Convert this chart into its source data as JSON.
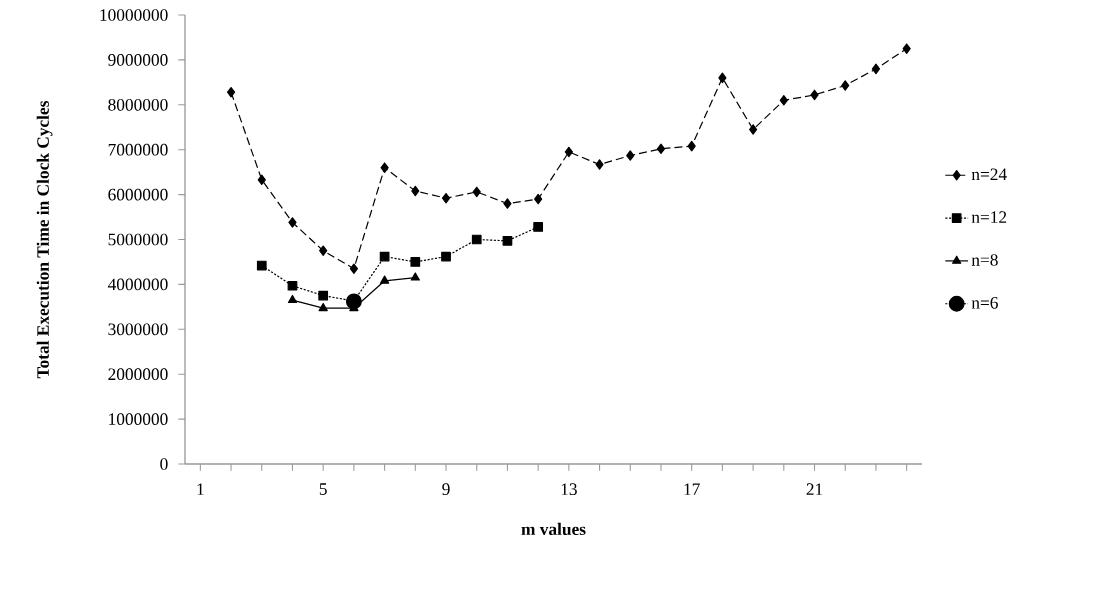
{
  "chart_data": {
    "type": "line",
    "xlabel": "m values",
    "ylabel": "Total Execution Time in Clock Cycles",
    "x": [
      2,
      3,
      4,
      5,
      6,
      7,
      8,
      9,
      10,
      11,
      12,
      13,
      14,
      15,
      16,
      17,
      18,
      19,
      20,
      21,
      22,
      23,
      24
    ],
    "series": [
      {
        "name": "n=24",
        "color": "#000000",
        "marker": "diamond",
        "line_style": "dashed",
        "values": [
          8280000,
          6330000,
          5380000,
          4750000,
          4350000,
          6600000,
          6080000,
          5920000,
          6060000,
          5800000,
          5900000,
          6950000,
          6670000,
          6870000,
          7020000,
          7080000,
          8600000,
          7450000,
          8100000,
          8220000,
          8430000,
          8800000,
          9250000
        ]
      },
      {
        "name": "n=12",
        "color": "#000000",
        "marker": "square",
        "line_style": "dotted",
        "values": [
          null,
          4420000,
          3970000,
          3750000,
          3630000,
          4620000,
          4500000,
          4620000,
          5000000,
          4970000,
          5280000,
          null,
          null,
          null,
          null,
          null,
          null,
          null,
          null,
          null,
          null,
          null,
          null
        ]
      },
      {
        "name": "n=8",
        "color": "#000000",
        "marker": "triangle",
        "line_style": "solid",
        "values": [
          null,
          null,
          3650000,
          3470000,
          3470000,
          4080000,
          4150000,
          null,
          null,
          null,
          null,
          null,
          null,
          null,
          null,
          null,
          null,
          null,
          null,
          null,
          null,
          null,
          null
        ]
      },
      {
        "name": "n=6",
        "color": "#000000",
        "marker": "circle",
        "line_style": "dotted",
        "values": [
          null,
          null,
          null,
          null,
          3620000,
          null,
          null,
          null,
          null,
          null,
          null,
          null,
          null,
          null,
          null,
          null,
          null,
          null,
          null,
          null,
          null,
          null,
          null
        ]
      }
    ],
    "xlim": [
      0.5,
      24.5
    ],
    "xticks": [
      {
        "value": 1,
        "label": "1"
      },
      {
        "value": 2,
        "label": null
      },
      {
        "value": 3,
        "label": null
      },
      {
        "value": 4,
        "label": null
      },
      {
        "value": 5,
        "label": "5"
      },
      {
        "value": 6,
        "label": null
      },
      {
        "value": 7,
        "label": null
      },
      {
        "value": 8,
        "label": null
      },
      {
        "value": 9,
        "label": "9"
      },
      {
        "value": 10,
        "label": null
      },
      {
        "value": 11,
        "label": null
      },
      {
        "value": 12,
        "label": null
      },
      {
        "value": 13,
        "label": "13"
      },
      {
        "value": 14,
        "label": null
      },
      {
        "value": 15,
        "label": null
      },
      {
        "value": 16,
        "label": null
      },
      {
        "value": 17,
        "label": "17"
      },
      {
        "value": 18,
        "label": null
      },
      {
        "value": 19,
        "label": null
      },
      {
        "value": 20,
        "label": null
      },
      {
        "value": 21,
        "label": "21"
      },
      {
        "value": 22,
        "label": null
      },
      {
        "value": 23,
        "label": null
      },
      {
        "value": 24,
        "label": null
      }
    ],
    "ylim": [
      0,
      10000000
    ],
    "yticks": [
      0,
      1000000,
      2000000,
      3000000,
      4000000,
      5000000,
      6000000,
      7000000,
      8000000,
      9000000,
      10000000
    ],
    "grid": false,
    "legend": "right"
  }
}
